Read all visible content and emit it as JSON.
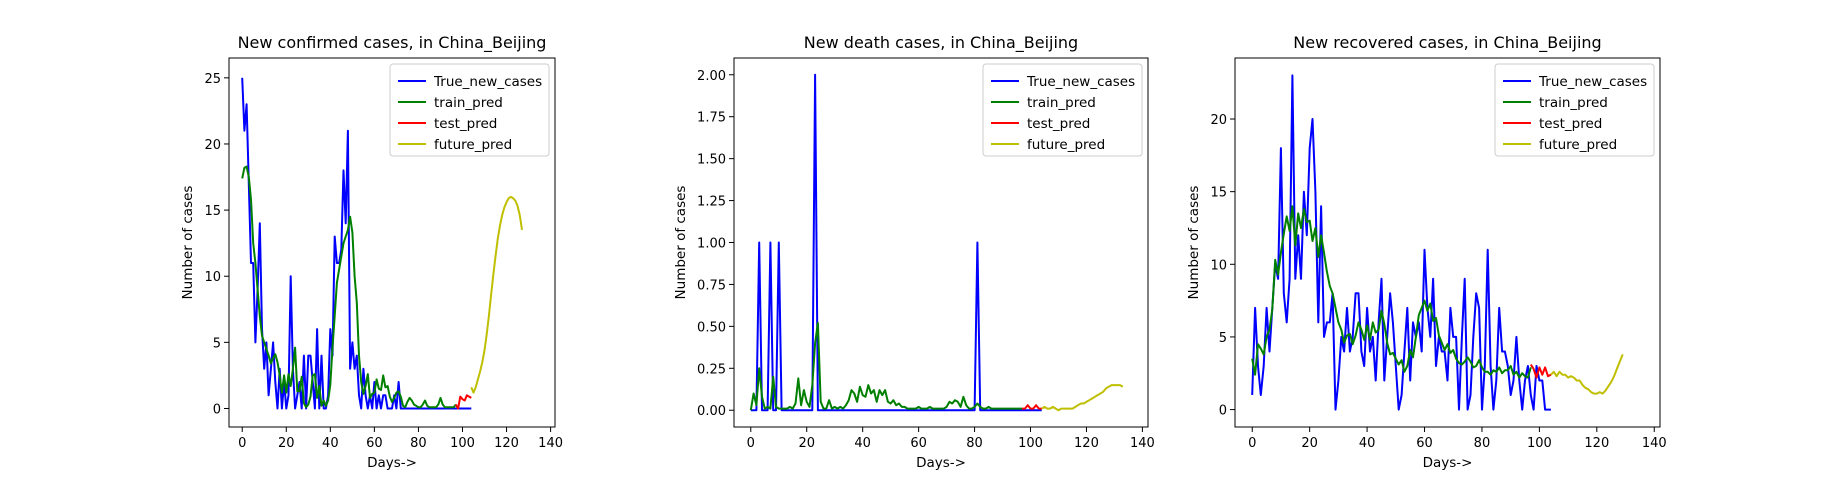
{
  "figure": {
    "background": "#ffffff"
  },
  "chart_data": [
    {
      "type": "line",
      "title": "New confirmed cases, in China_Beijing",
      "xlabel": "Days->",
      "ylabel": "Number of cases",
      "xlim": [
        -6,
        142
      ],
      "ylim": [
        -1.4,
        26.5
      ],
      "xticks": [
        0,
        20,
        40,
        60,
        80,
        100,
        120,
        140
      ],
      "yticks": [
        0,
        5,
        10,
        15,
        20,
        25
      ],
      "ytick_labels": [
        "0",
        "5",
        "10",
        "15",
        "20",
        "25"
      ],
      "grid": false,
      "legend": "top-right",
      "series": [
        {
          "name": "True_new_cases",
          "color": "#0000ff",
          "x_start": 0,
          "values": [
            25,
            21,
            23,
            17,
            11,
            11,
            5,
            9,
            14,
            6,
            3,
            5,
            1,
            3,
            5,
            2,
            0,
            3,
            0,
            2,
            0,
            1,
            10,
            3,
            0,
            1,
            2,
            0,
            4,
            0,
            4,
            4,
            2,
            0,
            6,
            0,
            4,
            0,
            0,
            1,
            6,
            4,
            13,
            11,
            11,
            12,
            18,
            14,
            21,
            3,
            5,
            3,
            4,
            1,
            0,
            3,
            1,
            0,
            1,
            0,
            2,
            0,
            1,
            0,
            1,
            1,
            0,
            0,
            0,
            1,
            0,
            2,
            0,
            0,
            0,
            0,
            0,
            0,
            0,
            0,
            0,
            0,
            0,
            0,
            0,
            0,
            0,
            0,
            0,
            0,
            0,
            0,
            0,
            0,
            0,
            0,
            0,
            0,
            0,
            0,
            0,
            0,
            0,
            0,
            0
          ]
        },
        {
          "name": "train_pred",
          "color": "#008000",
          "x_start": 0,
          "values": [
            17.4,
            18.2,
            18.3,
            17.5,
            15.8,
            12.5,
            11,
            9,
            7,
            5.5,
            5,
            4.5,
            4,
            3.4,
            3.8,
            4.1,
            3.5,
            2.5,
            1.2,
            2.5,
            1.2,
            2.6,
            1.7,
            3,
            4.6,
            1.3,
            1.3,
            2.4,
            0.4,
            0.1,
            0.3,
            0.9,
            2.5,
            2.6,
            0.8,
            1.7,
            0.2,
            0.6,
            0.2,
            0.6,
            1.8,
            4.6,
            7,
            9.5,
            10.5,
            11.5,
            12.5,
            13,
            13.5,
            14.5,
            13.3,
            10,
            8,
            4,
            2,
            1.1,
            1.7,
            2.6,
            0.8,
            1.1,
            1.2,
            2.2,
            1.5,
            1.4,
            2.5,
            1.6,
            1.7,
            0.9,
            0.5,
            0.8,
            1.2,
            1.3,
            0.9,
            0.2,
            0.1,
            0.5,
            0.8,
            0.6,
            0.3,
            0.2,
            0.1,
            0.1,
            0.3,
            0.6,
            0.2,
            0.1,
            0.1,
            0.1,
            0.1,
            0.3,
            0.8,
            0.3,
            0.1,
            0.1,
            0.1,
            0.1,
            0.1,
            0.3
          ]
        },
        {
          "name": "test_pred",
          "color": "#ff0000",
          "x_start": 97,
          "values": [
            0.3,
            0,
            0.9,
            0.7,
            0.6,
            1,
            0.9,
            0.8
          ]
        },
        {
          "name": "future_pred",
          "color": "#bfbf00",
          "x_start": 104,
          "values": [
            1.6,
            1.2,
            1.6,
            2.2,
            2.8,
            3.5,
            4.4,
            5.6,
            7,
            8.6,
            10.1,
            11.5,
            12.8,
            13.8,
            14.6,
            15.2,
            15.6,
            15.9,
            16,
            15.9,
            15.7,
            15.3,
            14.6,
            13.5
          ]
        }
      ]
    },
    {
      "type": "line",
      "title": "New death cases, in China_Beijing",
      "xlabel": "Days->",
      "ylabel": "Number of cases",
      "xlim": [
        -6,
        142
      ],
      "ylim": [
        -0.1,
        2.1
      ],
      "xticks": [
        0,
        20,
        40,
        60,
        80,
        100,
        120,
        140
      ],
      "yticks": [
        0,
        0.25,
        0.5,
        0.75,
        1.0,
        1.25,
        1.5,
        1.75,
        2.0
      ],
      "ytick_labels": [
        "0.00",
        "0.25",
        "0.50",
        "0.75",
        "1.00",
        "1.25",
        "1.50",
        "1.75",
        "2.00"
      ],
      "grid": false,
      "legend": "top-right",
      "series": [
        {
          "name": "True_new_cases",
          "color": "#0000ff",
          "x_start": 0,
          "values": [
            0,
            0,
            0,
            1,
            0,
            0,
            0,
            1,
            0,
            0,
            1,
            0,
            0,
            0,
            0,
            0,
            0,
            0,
            0,
            0,
            0,
            0,
            0,
            2,
            0,
            0,
            0,
            0,
            0,
            0,
            0,
            0,
            0,
            0,
            0,
            0,
            0,
            0,
            0,
            0,
            0,
            0,
            0,
            0,
            0,
            0,
            0,
            0,
            0,
            0,
            0,
            0,
            0,
            0,
            0,
            0,
            0,
            0,
            0,
            0,
            0,
            0,
            0,
            0,
            0,
            0,
            0,
            0,
            0,
            0,
            0,
            0,
            0,
            0,
            0,
            0,
            0,
            0,
            0,
            0,
            0,
            1,
            0,
            0,
            0,
            0,
            0,
            0,
            0,
            0,
            0,
            0,
            0,
            0,
            0,
            0,
            0,
            0,
            0,
            0,
            0,
            0,
            0,
            0,
            0
          ]
        },
        {
          "name": "train_pred",
          "color": "#008000",
          "x_start": 0,
          "values": [
            0,
            0.1,
            0.03,
            0.25,
            0.08,
            0.01,
            0.02,
            0.01,
            0.2,
            0.02,
            0.01,
            0.01,
            0.01,
            0.01,
            0.02,
            0.01,
            0.04,
            0.19,
            0.03,
            0.12,
            0.05,
            0.02,
            0.15,
            0.4,
            0.52,
            0.05,
            0.01,
            0.01,
            0.06,
            0.01,
            0.02,
            0.01,
            0.02,
            0.01,
            0.03,
            0.06,
            0.12,
            0.1,
            0.05,
            0.14,
            0.09,
            0.08,
            0.15,
            0.1,
            0.12,
            0.05,
            0.12,
            0.09,
            0.12,
            0.05,
            0.04,
            0.06,
            0.03,
            0.04,
            0.02,
            0.02,
            0.01,
            0.01,
            0.01,
            0.01,
            0.02,
            0.01,
            0.01,
            0.01,
            0.02,
            0.01,
            0.01,
            0.01,
            0.01,
            0.01,
            0.02,
            0.05,
            0.04,
            0.06,
            0.05,
            0.02,
            0.08,
            0.03,
            0.01,
            0.01,
            0.02,
            0.04,
            0.02,
            0.01,
            0.01,
            0.02,
            0.01,
            0.01,
            0.01,
            0.01,
            0.01,
            0.01,
            0.01,
            0.01,
            0.01,
            0.01,
            0.01,
            0.01
          ]
        },
        {
          "name": "test_pred",
          "color": "#ff0000",
          "x_start": 97,
          "values": [
            0.01,
            0.01,
            0.03,
            0.01,
            0.01,
            0.03,
            0.01,
            0.01
          ]
        },
        {
          "name": "future_pred",
          "color": "#bfbf00",
          "x_start": 104,
          "values": [
            0.01,
            0.02,
            0.01,
            0.01,
            0.02,
            0.01,
            0,
            0.01,
            0.01,
            0.01,
            0.01,
            0.01,
            0.02,
            0.03,
            0.04,
            0.04,
            0.05,
            0.06,
            0.07,
            0.08,
            0.09,
            0.1,
            0.11,
            0.13,
            0.14,
            0.15,
            0.15,
            0.15,
            0.15,
            0.14
          ]
        }
      ]
    },
    {
      "type": "line",
      "title": "New recovered cases, in China_Beijing",
      "xlabel": "Days->",
      "ylabel": "Number of cases",
      "xlim": [
        -6,
        142
      ],
      "ylim": [
        -1.2,
        24.2
      ],
      "xticks": [
        0,
        20,
        40,
        60,
        80,
        100,
        120,
        140
      ],
      "yticks": [
        0,
        5,
        10,
        15,
        20
      ],
      "ytick_labels": [
        "0",
        "5",
        "10",
        "15",
        "20"
      ],
      "grid": false,
      "legend": "top-right",
      "series": [
        {
          "name": "True_new_cases",
          "color": "#0000ff",
          "x_start": 0,
          "values": [
            1,
            7,
            3,
            1,
            3,
            7,
            4,
            7,
            10,
            9,
            18,
            8,
            6,
            9,
            23,
            9,
            12,
            9,
            15,
            12,
            18,
            20,
            15,
            6,
            14,
            5,
            6,
            6,
            8,
            0,
            2,
            5,
            4,
            7,
            4,
            5,
            8,
            8,
            4,
            3,
            7,
            4,
            5,
            2,
            6,
            9,
            2,
            5,
            8,
            6,
            3,
            0,
            1,
            4,
            7,
            2,
            6,
            5,
            6,
            4,
            11,
            7,
            5,
            9,
            3,
            5,
            4,
            4,
            2,
            7,
            5,
            5,
            0,
            5,
            9,
            0,
            1,
            5,
            8,
            7,
            0,
            3,
            11,
            3,
            0,
            2,
            7,
            4,
            4,
            3,
            1,
            2,
            5,
            2,
            0,
            2,
            3,
            1,
            0,
            3,
            2,
            2,
            0,
            0,
            0
          ]
        },
        {
          "name": "train_pred",
          "color": "#008000",
          "x_start": 0,
          "values": [
            3.5,
            2.4,
            4.5,
            4.2,
            3.8,
            5,
            5.5,
            6.9,
            10.3,
            9.3,
            10.8,
            12.1,
            13.3,
            12.3,
            14,
            11.3,
            13.5,
            12.5,
            13.8,
            12.9,
            13,
            11.6,
            12.5,
            10.5,
            12,
            10.8,
            9.5,
            8.5,
            8,
            7,
            6,
            5.5,
            4.6,
            5.1,
            5.2,
            4.5,
            5.1,
            6,
            5.5,
            4.8,
            5.8,
            4.8,
            6,
            5.3,
            5.5,
            6.8,
            5.9,
            4.6,
            3.8,
            3.9,
            3.5,
            3.1,
            3.4,
            2.6,
            3,
            4.1,
            3.6,
            5,
            6.5,
            7,
            7.5,
            6.8,
            7.3,
            6.1,
            6.3,
            5.1,
            4.6,
            4.1,
            4.5,
            3.9,
            4.1,
            3.5,
            3.2,
            3.1,
            3.3,
            3.6,
            3.3,
            2.9,
            3,
            3.4,
            2.9,
            2.6,
            2.6,
            2.4,
            2.7,
            2.6,
            2.9,
            2.5,
            2.7,
            2.7,
            3,
            2.4,
            2.6,
            2.2,
            2.5,
            2.3,
            2.2,
            2.9
          ]
        },
        {
          "name": "test_pred",
          "color": "#ff0000",
          "x_start": 97,
          "values": [
            3.1,
            2.8,
            2.2,
            2.9,
            2.4,
            2.9,
            2.3,
            2.4
          ]
        },
        {
          "name": "future_pred",
          "color": "#bfbf00",
          "x_start": 104,
          "values": [
            2.4,
            2.6,
            2.3,
            2.6,
            2.4,
            2.4,
            2.2,
            2.3,
            2.2,
            2,
            2,
            1.7,
            1.5,
            1.4,
            1.2,
            1.1,
            1.1,
            1.2,
            1.1,
            1.3,
            1.6,
            1.9,
            2.3,
            2.8,
            3.3,
            3.8
          ]
        }
      ]
    }
  ]
}
